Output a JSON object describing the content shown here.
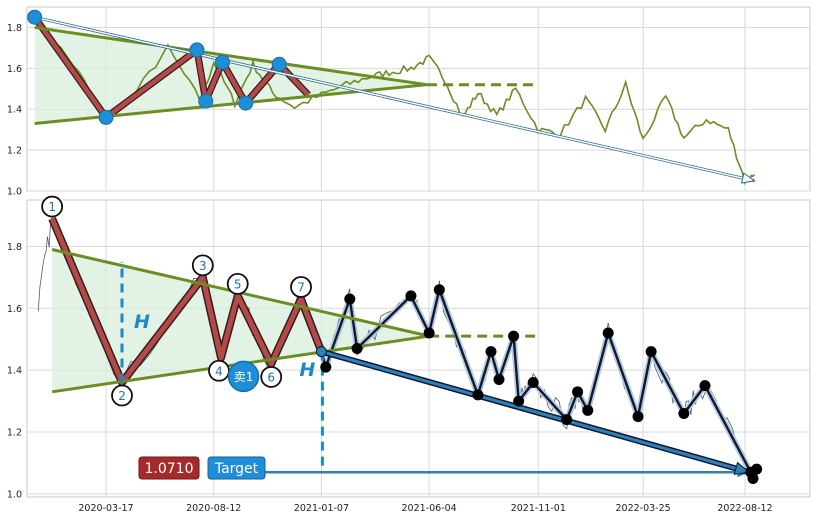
{
  "chart_data": [
    {
      "type": "line",
      "panel": "top",
      "ylim": [
        1.0,
        1.9
      ],
      "yticks": [
        "1.0",
        "1.2",
        "1.4",
        "1.6",
        "1.8"
      ],
      "grid": true,
      "series_color": "#6b8e23",
      "x_dates": [
        "2019-12-10",
        "2020-02-01",
        "2020-03-17",
        "2020-04-20",
        "2020-06-10",
        "2020-07-25",
        "2020-08-12",
        "2020-09-10",
        "2020-10-05",
        "2020-11-01",
        "2020-12-01",
        "2021-01-07",
        "2021-02-10",
        "2021-03-15",
        "2021-04-10",
        "2021-05-10",
        "2021-06-04",
        "2021-06-25",
        "2021-07-20",
        "2021-08-10",
        "2021-09-05",
        "2021-10-01",
        "2021-11-01",
        "2021-12-01",
        "2022-01-05",
        "2022-02-01",
        "2022-03-01",
        "2022-03-25",
        "2022-04-25",
        "2022-05-20",
        "2022-06-20",
        "2022-07-20",
        "2022-08-12",
        "2022-08-25"
      ],
      "values": [
        1.85,
        1.62,
        1.36,
        1.45,
        1.7,
        1.44,
        1.63,
        1.43,
        1.62,
        1.48,
        1.41,
        1.47,
        1.52,
        1.56,
        1.58,
        1.6,
        1.65,
        1.55,
        1.36,
        1.48,
        1.37,
        1.5,
        1.3,
        1.28,
        1.45,
        1.3,
        1.52,
        1.25,
        1.46,
        1.26,
        1.35,
        1.3,
        1.05,
        1.08
      ],
      "markers": [
        {
          "x": "2019-12-10",
          "y": 1.85
        },
        {
          "x": "2020-03-17",
          "y": 1.36
        },
        {
          "x": "2020-07-20",
          "y": 1.69
        },
        {
          "x": "2020-08-01",
          "y": 1.44
        },
        {
          "x": "2020-08-24",
          "y": 1.63
        },
        {
          "x": "2020-09-25",
          "y": 1.43
        },
        {
          "x": "2020-11-10",
          "y": 1.62
        }
      ],
      "trendlines": [
        {
          "from": {
            "x": "2019-12-10",
            "y": 1.8
          },
          "to": {
            "x": "2021-06-01",
            "y": 1.52
          }
        },
        {
          "from": {
            "x": "2019-12-10",
            "y": 1.33
          },
          "to": {
            "x": "2021-06-01",
            "y": 1.52
          }
        }
      ],
      "dashed_level": {
        "y": 1.52,
        "from": "2021-06-01",
        "to": "2021-11-01"
      },
      "arrow": {
        "from": {
          "x": "2019-12-10",
          "y": 1.85
        },
        "to": {
          "x": "2022-08-25",
          "y": 1.05
        }
      }
    },
    {
      "type": "line",
      "panel": "bottom",
      "ylim": [
        0.99,
        1.95
      ],
      "yticks": [
        "1.0",
        "1.2",
        "1.4",
        "1.6",
        "1.8"
      ],
      "xticks": [
        "2020-03-17",
        "2020-08-12",
        "2021-01-07",
        "2021-06-04",
        "2021-11-01",
        "2022-03-25",
        "2022-08-12"
      ],
      "grid": true,
      "wave_points": [
        {
          "label": "1",
          "x": "2020-01-03",
          "y": 1.89
        },
        {
          "label": "2",
          "x": "2020-04-08",
          "y": 1.36
        },
        {
          "label": "3",
          "x": "2020-07-28",
          "y": 1.7
        },
        {
          "label": "4",
          "x": "2020-08-22",
          "y": 1.44
        },
        {
          "label": "5",
          "x": "2020-09-14",
          "y": 1.64
        },
        {
          "label": "6",
          "x": "2020-10-30",
          "y": 1.42
        },
        {
          "label": "7",
          "x": "2020-12-10",
          "y": 1.63
        }
      ],
      "black_swing_points": [
        {
          "x": "2021-01-13",
          "y": 1.41
        },
        {
          "x": "2021-02-15",
          "y": 1.63
        },
        {
          "x": "2021-02-25",
          "y": 1.47
        },
        {
          "x": "2021-05-10",
          "y": 1.64
        },
        {
          "x": "2021-06-04",
          "y": 1.52
        },
        {
          "x": "2021-06-18",
          "y": 1.66
        },
        {
          "x": "2021-08-10",
          "y": 1.32
        },
        {
          "x": "2021-08-28",
          "y": 1.46
        },
        {
          "x": "2021-09-08",
          "y": 1.37
        },
        {
          "x": "2021-09-28",
          "y": 1.51
        },
        {
          "x": "2021-10-05",
          "y": 1.3
        },
        {
          "x": "2021-10-25",
          "y": 1.36
        },
        {
          "x": "2021-12-10",
          "y": 1.24
        },
        {
          "x": "2021-12-25",
          "y": 1.33
        },
        {
          "x": "2022-01-08",
          "y": 1.27
        },
        {
          "x": "2022-02-05",
          "y": 1.52
        },
        {
          "x": "2022-03-18",
          "y": 1.25
        },
        {
          "x": "2022-04-05",
          "y": 1.46
        },
        {
          "x": "2022-05-20",
          "y": 1.26
        },
        {
          "x": "2022-06-18",
          "y": 1.35
        },
        {
          "x": "2022-08-20",
          "y": 1.07
        },
        {
          "x": "2022-08-28",
          "y": 1.08
        },
        {
          "x": "2022-08-23",
          "y": 1.05
        }
      ],
      "trendlines": [
        {
          "from": {
            "x": "2020-01-03",
            "y": 1.79
          },
          "to": {
            "x": "2021-06-04",
            "y": 1.51
          }
        },
        {
          "from": {
            "x": "2020-01-03",
            "y": 1.33
          },
          "to": {
            "x": "2021-06-04",
            "y": 1.51
          }
        }
      ],
      "dashed_level": {
        "y": 1.51,
        "from": "2021-06-04",
        "to": "2021-11-01"
      },
      "measure_H": {
        "label": "H",
        "x": "2020-04-08",
        "from": 1.36,
        "to": 1.75
      },
      "target_H": {
        "label": "H",
        "x": "2021-01-07",
        "from": 1.46,
        "to": 1.07
      },
      "target_arrow": {
        "from": {
          "x": "2021-01-07",
          "y": 1.46
        },
        "to": {
          "x": "2022-08-18",
          "y": 1.07
        }
      },
      "target_line": {
        "y": 1.07,
        "from": "2020-12-01",
        "to": "2022-08-18"
      },
      "sell_marker": {
        "label": "卖1",
        "x": "2020-09-22",
        "y": 1.38
      },
      "price_box": "1.0710",
      "target_label": "Target"
    }
  ]
}
